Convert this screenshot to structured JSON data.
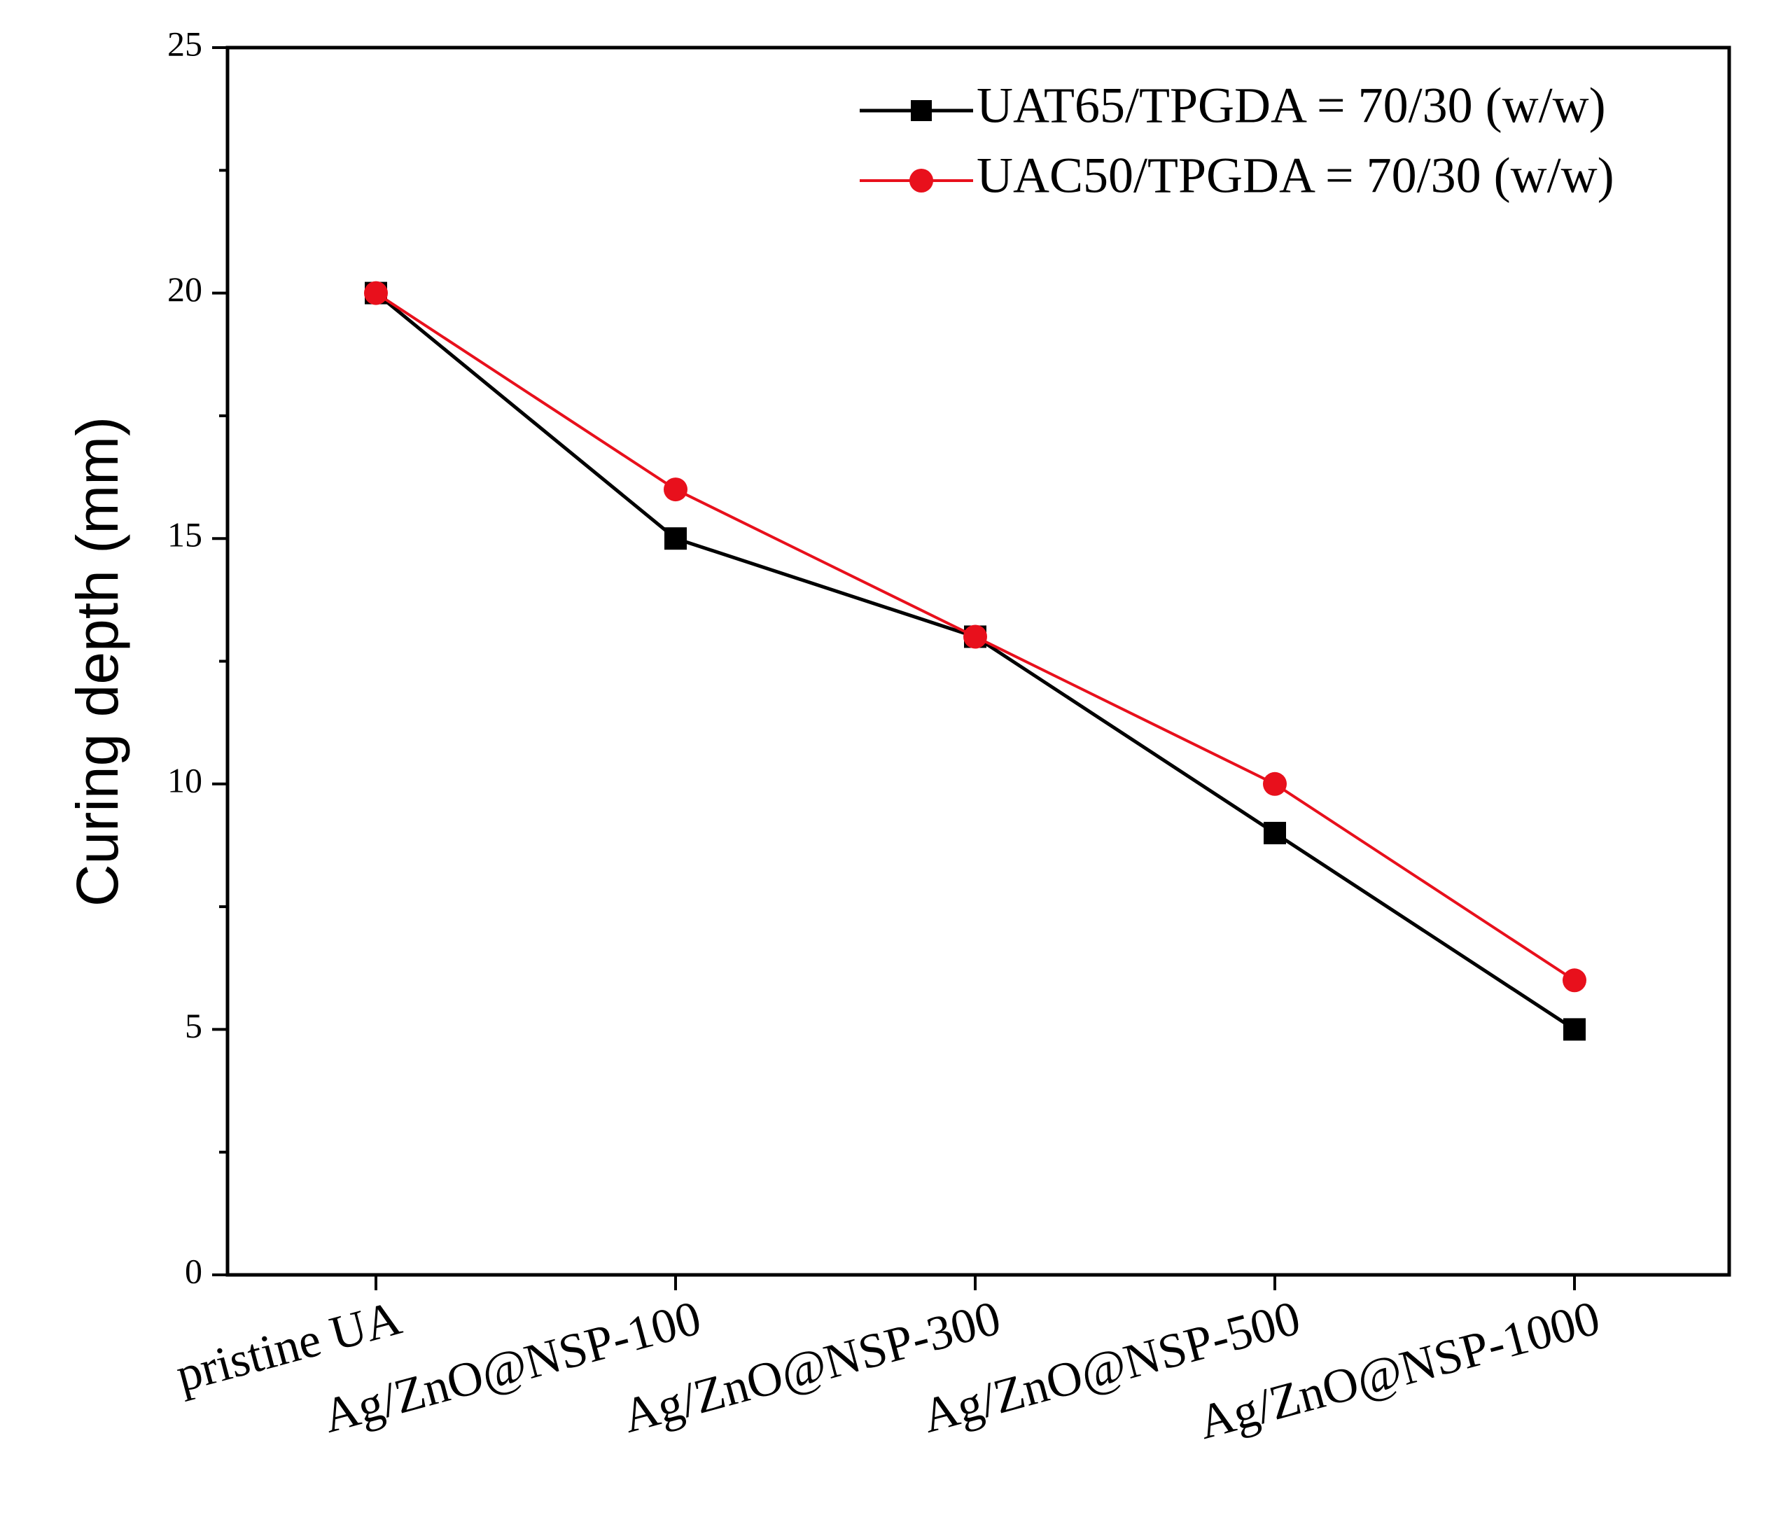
{
  "chart_data": {
    "type": "line",
    "title": "",
    "xlabel": "",
    "ylabel": "Curing depth (mm)",
    "categories": [
      "pristine UA",
      "Ag/ZnO@NSP-100",
      "Ag/ZnO@NSP-300",
      "Ag/ZnO@NSP-500",
      "Ag/ZnO@NSP-1000"
    ],
    "ylim": [
      0,
      25
    ],
    "yticks": [
      "0",
      "5",
      "10",
      "15",
      "20",
      "25"
    ],
    "grid": false,
    "legend_position": "top-right",
    "series": [
      {
        "name": "UAT65/TPGDA = 70/30 (w/w)",
        "color": "#000000",
        "marker": "square",
        "values": [
          20,
          15,
          13,
          9,
          5
        ]
      },
      {
        "name": "UAC50/TPGDA = 70/30 (w/w)",
        "color": "#e8101c",
        "marker": "circle",
        "values": [
          20,
          16,
          13,
          10,
          6
        ]
      }
    ]
  }
}
